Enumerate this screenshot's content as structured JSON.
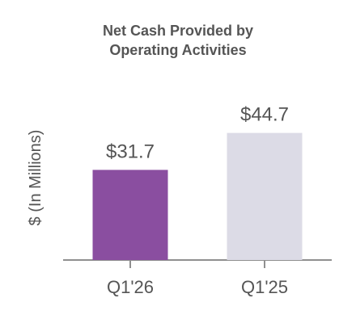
{
  "chart_data": {
    "type": "bar",
    "title": "Net Cash Provided by Operating Activities",
    "title_lines": [
      "Net Cash Provided by",
      "Operating Activities"
    ],
    "ylabel": "$ (In Millions)",
    "xlabel": "",
    "categories": [
      "Q1'26",
      "Q1'25"
    ],
    "values": [
      31.7,
      44.7
    ],
    "value_labels": [
      "$31.7",
      "$44.7"
    ],
    "colors": [
      "#8a4ea0",
      "#dcdbe6"
    ],
    "ylim": [
      0,
      48
    ],
    "grid": false,
    "legend": "none"
  },
  "style": {
    "axis_color": "#8f8f8f",
    "text_color": "#555555",
    "title_color": "#555555"
  }
}
